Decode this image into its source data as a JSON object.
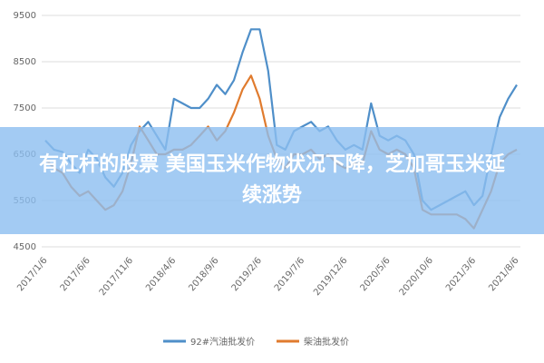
{
  "chart_data": {
    "type": "line",
    "categories": [
      "2017/1/6",
      null,
      null,
      null,
      null,
      "2017/6/6",
      null,
      null,
      null,
      null,
      "2017/11/6",
      null,
      null,
      null,
      null,
      "2018/4/6",
      null,
      null,
      null,
      null,
      "2018/9/6",
      null,
      null,
      null,
      null,
      "2019/2/6",
      null,
      null,
      null,
      null,
      "2019/7/6",
      null,
      null,
      null,
      null,
      "2019/12/6",
      null,
      null,
      null,
      null,
      "2020/5/6",
      null,
      null,
      null,
      null,
      "2020/10/6",
      null,
      null,
      null,
      null,
      "2021/3/6",
      null,
      null,
      null,
      null,
      "2021/8/6"
    ],
    "series": [
      {
        "name": "92#汽油批发价",
        "color": "#4f8fc9",
        "values": [
          6800,
          6600,
          6550,
          6300,
          6100,
          6600,
          6400,
          6000,
          5800,
          6100,
          6700,
          7000,
          7200,
          6900,
          6600,
          7700,
          7600,
          7500,
          7500,
          7700,
          8000,
          7800,
          8100,
          8700,
          9200,
          9200,
          8300,
          6700,
          6600,
          7000,
          7100,
          7200,
          7000,
          7100,
          6800,
          6600,
          6700,
          6600,
          7600,
          6900,
          6800,
          6900,
          6800,
          6500,
          5500,
          5300,
          5400,
          5500,
          5600,
          5700,
          5400,
          5600,
          6500,
          7300,
          7700,
          8000
        ]
      },
      {
        "name": "柴油批发价",
        "color": "#e07b2e",
        "values": [
          6400,
          6200,
          6100,
          5800,
          5600,
          5700,
          5500,
          5300,
          5400,
          5700,
          6300,
          7100,
          6800,
          6500,
          6500,
          6600,
          6600,
          6700,
          6900,
          7100,
          6800,
          7000,
          7400,
          7900,
          8200,
          7700,
          6900,
          6400,
          6200,
          6500,
          6500,
          6600,
          6400,
          6500,
          6300,
          6200,
          6300,
          6300,
          7000,
          6600,
          6500,
          6600,
          6500,
          6200,
          5300,
          5200,
          5200,
          5200,
          5200,
          5100,
          4900,
          5300,
          5700,
          6300,
          6500,
          6600
        ]
      }
    ],
    "ylim": [
      4500,
      9500
    ],
    "yticks": [
      4500,
      5500,
      6500,
      7500,
      8500,
      9500
    ],
    "grid": true
  },
  "banner": {
    "text": "有杠杆的股票 美国玉米作物状况下降，芝加哥玉米延续涨势"
  }
}
